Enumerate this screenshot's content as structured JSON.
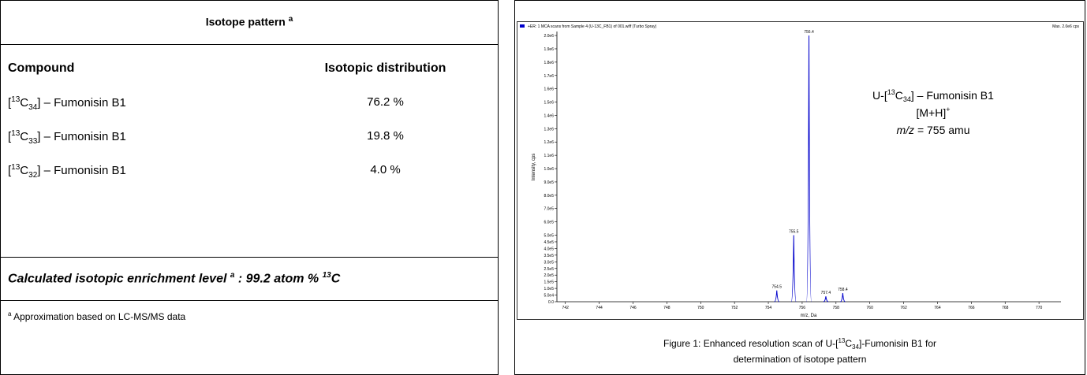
{
  "table": {
    "title": "Isotope pattern",
    "title_note": "a",
    "columns": [
      "Compound",
      "Isotopic distribution"
    ],
    "rows": [
      {
        "compound": [
          "[",
          "13",
          "C",
          "34",
          "] – Fumonisin B1"
        ],
        "distribution": "76.2 %"
      },
      {
        "compound": [
          "[",
          "13",
          "C",
          "33",
          "] – Fumonisin B1"
        ],
        "distribution": "19.8 %"
      },
      {
        "compound": [
          "[",
          "13",
          "C",
          "32",
          "] – Fumonisin B1"
        ],
        "distribution": "4.0 %"
      }
    ],
    "enrichment": [
      "Calculated isotopic enrichment level ",
      "a",
      " : 99.2 atom % ",
      "13",
      "C"
    ],
    "footnote": [
      "a",
      " Approximation based on  LC-MS/MS data"
    ]
  },
  "chart_data": {
    "type": "spectrum",
    "header": "+ER: 1 MCA scans from Sample 4 (U-13C_FB1) of 001.wiff (Turbo Spray)",
    "max_label": "Max. 2.0e6 cps",
    "xlabel": "m/z, Da",
    "ylabel": "Intensity, cps",
    "color": "#0000cc",
    "x": [
      754.5,
      755.5,
      756.4,
      757.4,
      758.4
    ],
    "values": [
      85000,
      500000,
      2000000,
      40000,
      65000
    ],
    "xlim": [
      741.5,
      771.3
    ],
    "ylim": [
      0,
      2030000
    ],
    "xticks": [
      742,
      744,
      746,
      748,
      750,
      752,
      754,
      756,
      758,
      760,
      762,
      764,
      766,
      768,
      770
    ],
    "yticks": [
      {
        "value": 0,
        "label": "0.0"
      },
      {
        "value": 50000,
        "label": "5.0e4"
      },
      {
        "value": 100000,
        "label": "1.0e5"
      },
      {
        "value": 150000,
        "label": "1.5e5"
      },
      {
        "value": 200000,
        "label": "2.0e5"
      },
      {
        "value": 250000,
        "label": "2.5e5"
      },
      {
        "value": 300000,
        "label": "3.0e5"
      },
      {
        "value": 350000,
        "label": "3.5e5"
      },
      {
        "value": 400000,
        "label": "4.0e5"
      },
      {
        "value": 450000,
        "label": "4.5e5"
      },
      {
        "value": 500000,
        "label": "5.0e5"
      },
      {
        "value": 600000,
        "label": "6.0e5"
      },
      {
        "value": 700000,
        "label": "7.0e5"
      },
      {
        "value": 800000,
        "label": "8.0e5"
      },
      {
        "value": 900000,
        "label": "9.0e5"
      },
      {
        "value": 1000000,
        "label": "1.0e6"
      },
      {
        "value": 1100000,
        "label": "1.1e6"
      },
      {
        "value": 1200000,
        "label": "1.2e6"
      },
      {
        "value": 1300000,
        "label": "1.3e6"
      },
      {
        "value": 1400000,
        "label": "1.4e6"
      },
      {
        "value": 1500000,
        "label": "1.5e6"
      },
      {
        "value": 1600000,
        "label": "1.6e6"
      },
      {
        "value": 1700000,
        "label": "1.7e6"
      },
      {
        "value": 1800000,
        "label": "1.8e6"
      },
      {
        "value": 1900000,
        "label": "1.9e6"
      },
      {
        "value": 2000000,
        "label": "2.0e6"
      }
    ],
    "annotation": [
      [
        "U-[",
        "13",
        "C",
        "34",
        "] – Fumonisin B1"
      ],
      [
        "[M+H]",
        "+"
      ],
      [
        "m/z",
        " = 755 amu"
      ]
    ],
    "caption": [
      [
        "Figure 1: Enhanced resolution scan of U-[",
        "13",
        "C",
        "34",
        "]-Fumonisin B1 for"
      ],
      [
        "determination of isotope pattern"
      ]
    ]
  }
}
